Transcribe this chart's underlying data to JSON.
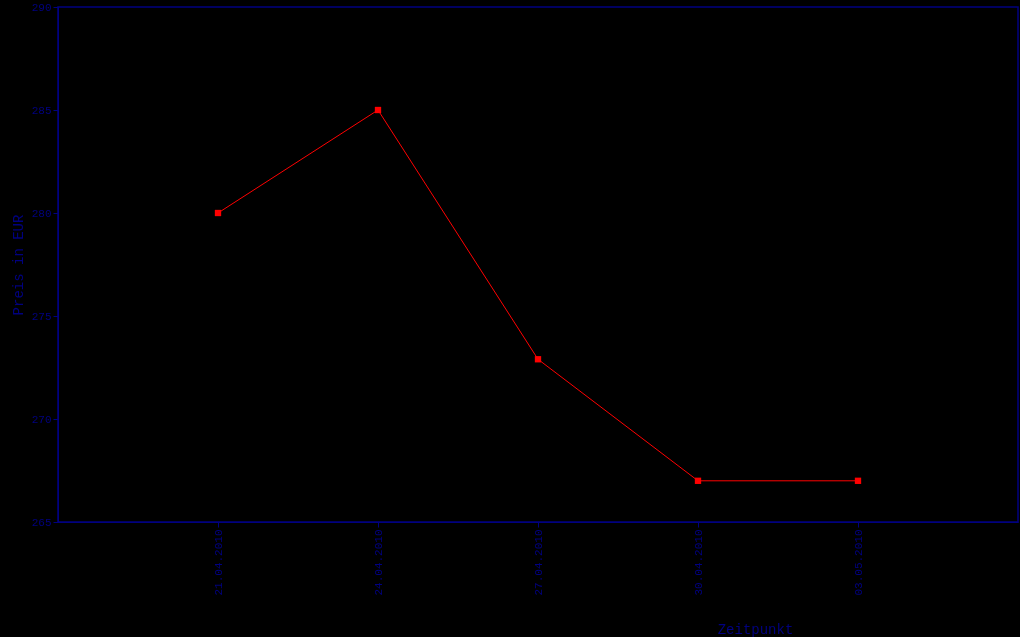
{
  "chart_data": {
    "type": "line",
    "xlabel": "Zeitpunkt",
    "ylabel": "Preis in EUR",
    "categories": [
      "21.04.2010",
      "24.04.2010",
      "27.04.2010",
      "30.04.2010",
      "03.05.2010"
    ],
    "series": [
      {
        "color": "#ff0000",
        "values": [
          280,
          285,
          272.9,
          267,
          267
        ]
      }
    ],
    "ylim": [
      265,
      290
    ],
    "yticks": [
      265,
      270,
      275,
      280,
      285,
      290
    ],
    "grid": false,
    "marker": "square",
    "line_style": "solid"
  }
}
